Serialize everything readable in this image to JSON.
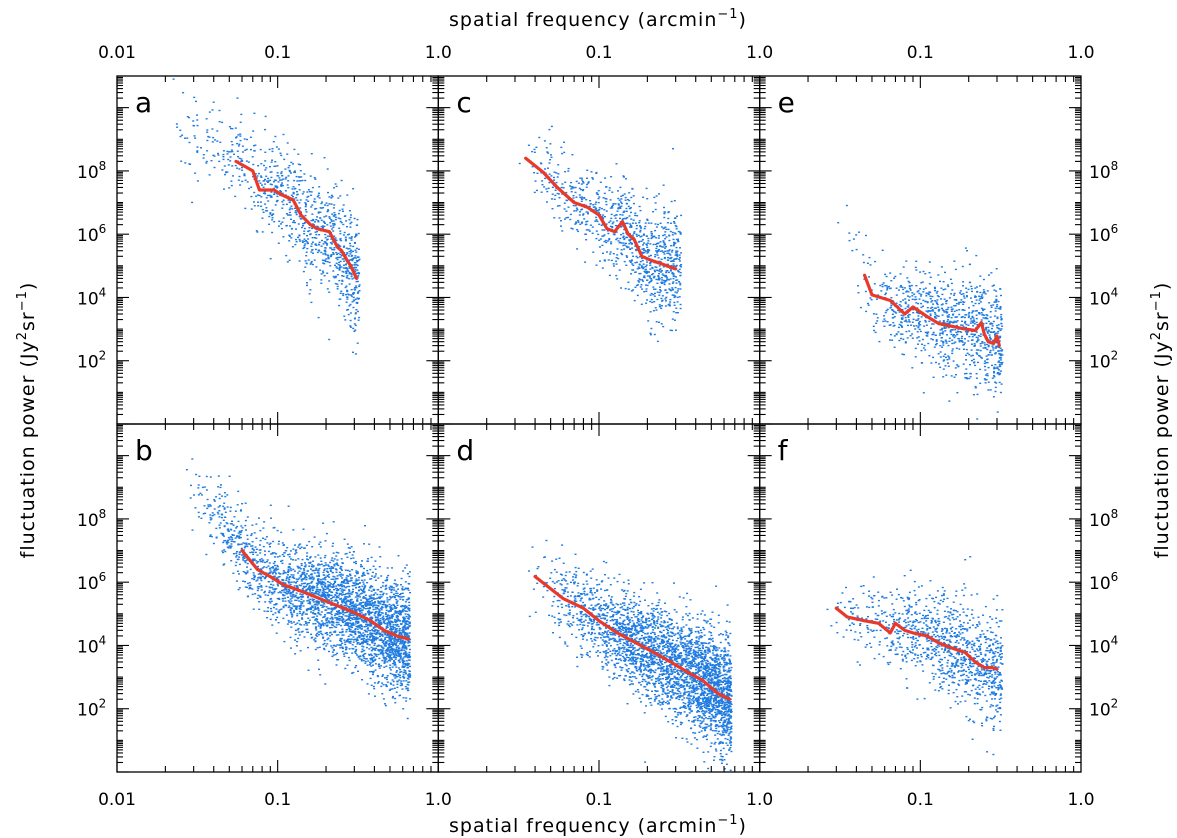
{
  "figure": {
    "x_axis_title": "spatial frequency (arcmin",
    "x_axis_title_exponent": "−1",
    "x_axis_title_close": ")",
    "y_axis_title": "fluctuation power (Jy",
    "y_axis_title_sup1": "2",
    "y_axis_title_mid": "sr",
    "y_axis_title_sup2": "−1",
    "y_axis_title_close": ")",
    "x_tick_labels": {
      "col0": [
        "0.01",
        "0.1",
        "1.0"
      ],
      "col1": [
        "0.1",
        "1.0"
      ],
      "col2": [
        "0.1",
        "1.0"
      ]
    },
    "y_tick_labels": [
      "10",
      "10",
      "10",
      "10"
    ],
    "y_tick_exponents": [
      "8",
      "6",
      "4",
      "2"
    ],
    "colors": {
      "points": "#1e7be0",
      "fit_line": "#e8392a",
      "frame": "#000000"
    }
  },
  "chart_data": [
    {
      "panel": "a",
      "type": "scatter",
      "x_scale": "log",
      "y_scale": "log",
      "xlim": [
        0.01,
        1.0
      ],
      "ylim": [
        1,
        100000000000
      ],
      "fit_line": {
        "x": [
          0.055,
          0.07,
          0.077,
          0.095,
          0.105,
          0.125,
          0.14,
          0.16,
          0.175,
          0.21,
          0.235,
          0.25,
          0.27,
          0.285,
          0.31
        ],
        "y": [
          200000000,
          100000000,
          25000000,
          25000000,
          18000000,
          12000000,
          4000000,
          2000000,
          1500000,
          1200000,
          400000,
          300000,
          150000,
          100000,
          40000
        ]
      },
      "scatter_cloud": {
        "x_range": [
          0.02,
          0.32
        ],
        "peak_y": 20000000,
        "n_points": 1000
      }
    },
    {
      "panel": "b",
      "type": "scatter",
      "x_scale": "log",
      "y_scale": "log",
      "xlim": [
        0.01,
        1.0
      ],
      "ylim": [
        1,
        100000000000
      ],
      "fit_line": {
        "x": [
          0.06,
          0.075,
          0.09,
          0.11,
          0.13,
          0.16,
          0.2,
          0.25,
          0.3,
          0.38,
          0.46,
          0.55,
          0.65
        ],
        "y": [
          10000000,
          2500000,
          1500000,
          800000,
          600000,
          400000,
          250000,
          160000,
          110000,
          60000,
          30000,
          20000,
          16000
        ]
      },
      "scatter_cloud": {
        "x_range": [
          0.025,
          0.66
        ],
        "peak_y": 200000,
        "n_points": 3200
      }
    },
    {
      "panel": "c",
      "type": "scatter",
      "x_scale": "log",
      "y_scale": "log",
      "xlim": [
        0.01,
        1.0
      ],
      "ylim": [
        1,
        100000000000
      ],
      "fit_line": {
        "x": [
          0.035,
          0.045,
          0.055,
          0.07,
          0.085,
          0.1,
          0.112,
          0.125,
          0.14,
          0.152,
          0.165,
          0.185,
          0.21,
          0.24,
          0.28,
          0.3
        ],
        "y": [
          250000000,
          90000000,
          30000000,
          10000000,
          7000000,
          4000000,
          1500000,
          1200000,
          2500000,
          1000000,
          700000,
          200000,
          150000,
          120000,
          90000,
          80000
        ]
      },
      "scatter_cloud": {
        "x_range": [
          0.03,
          0.32
        ],
        "peak_y": 3000000,
        "n_points": 1000
      }
    },
    {
      "panel": "d",
      "type": "scatter",
      "x_scale": "log",
      "y_scale": "log",
      "xlim": [
        0.01,
        1.0
      ],
      "ylim": [
        1,
        100000000000
      ],
      "fit_line": {
        "x": [
          0.04,
          0.06,
          0.08,
          0.1,
          0.13,
          0.17,
          0.22,
          0.28,
          0.35,
          0.44,
          0.55,
          0.65
        ],
        "y": [
          1500000,
          300000,
          150000,
          60000,
          25000,
          12000,
          6000,
          3000,
          1500,
          800,
          300,
          200
        ]
      },
      "scatter_cloud": {
        "x_range": [
          0.035,
          0.66
        ],
        "peak_y": 20000,
        "n_points": 3200
      }
    },
    {
      "panel": "e",
      "type": "scatter",
      "x_scale": "log",
      "y_scale": "log",
      "xlim": [
        0.01,
        1.0
      ],
      "ylim": [
        1,
        100000000000
      ],
      "fit_line": {
        "x": [
          0.045,
          0.05,
          0.065,
          0.08,
          0.09,
          0.11,
          0.13,
          0.16,
          0.19,
          0.22,
          0.24,
          0.25,
          0.265,
          0.285,
          0.3,
          0.31
        ],
        "y": [
          50000,
          12000,
          8000,
          3000,
          5000,
          2500,
          1500,
          1200,
          1000,
          900,
          1600,
          700,
          400,
          350,
          600,
          300
        ]
      },
      "scatter_cloud": {
        "x_range": [
          0.03,
          0.32
        ],
        "peak_y": 3000,
        "n_points": 1000
      }
    },
    {
      "panel": "f",
      "type": "scatter",
      "x_scale": "log",
      "y_scale": "log",
      "xlim": [
        0.01,
        1.0
      ],
      "ylim": [
        1,
        100000000000
      ],
      "fit_line": {
        "x": [
          0.03,
          0.035,
          0.045,
          0.055,
          0.065,
          0.07,
          0.08,
          0.09,
          0.11,
          0.13,
          0.16,
          0.19,
          0.22,
          0.25,
          0.28,
          0.3
        ],
        "y": [
          150000,
          80000,
          60000,
          50000,
          25000,
          50000,
          30000,
          25000,
          20000,
          12000,
          8000,
          6000,
          3000,
          2000,
          2000,
          1800
        ]
      },
      "scatter_cloud": {
        "x_range": [
          0.025,
          0.32
        ],
        "peak_y": 20000,
        "n_points": 1100
      }
    }
  ]
}
